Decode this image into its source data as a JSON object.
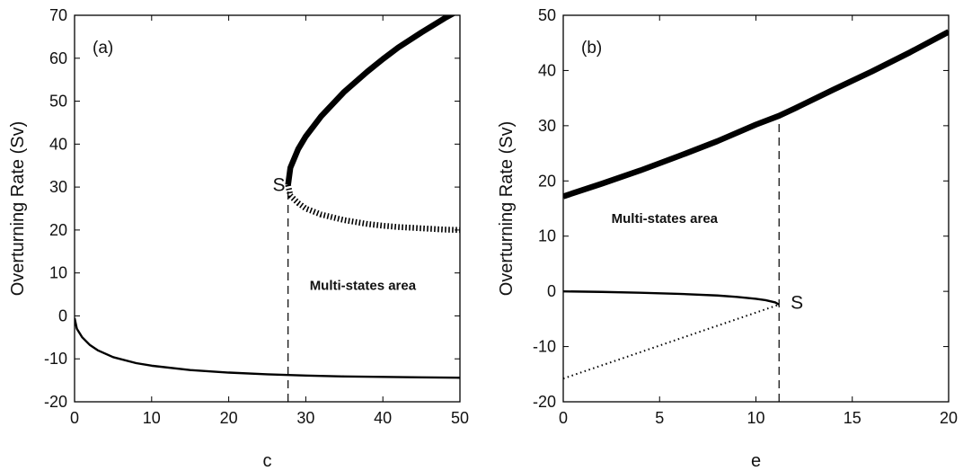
{
  "chart_data": [
    {
      "type": "line",
      "panel_label": "(a)",
      "xlabel": "c",
      "ylabel": "Overturning Rate (Sv)",
      "xlim": [
        0,
        50
      ],
      "ylim": [
        -20,
        70
      ],
      "xticks": [
        0,
        10,
        20,
        30,
        40,
        50
      ],
      "yticks": [
        -20,
        -10,
        0,
        10,
        20,
        30,
        40,
        50,
        60,
        70
      ],
      "grid": false,
      "series": [
        {
          "style": "thick-solid",
          "x": [
            27.7,
            28,
            29,
            30,
            32,
            35,
            38,
            40,
            42,
            45,
            48,
            50
          ],
          "y": [
            30.5,
            34.5,
            38.8,
            41.8,
            46.5,
            52.2,
            56.9,
            59.8,
            62.5,
            66.0,
            69.3,
            71.3
          ]
        },
        {
          "style": "thick-dotted",
          "x": [
            27.7,
            28,
            29,
            30,
            32,
            35,
            38,
            40,
            42,
            45,
            48,
            50
          ],
          "y": [
            30.5,
            28.0,
            26.3,
            25.0,
            23.6,
            22.3,
            21.4,
            21.0,
            20.7,
            20.4,
            20.1,
            20.0
          ]
        },
        {
          "style": "thin-solid",
          "x": [
            0,
            0.3,
            1,
            2,
            3,
            5,
            8,
            10,
            15,
            20,
            25,
            30,
            35,
            40,
            45,
            50
          ],
          "y": [
            -0.5,
            -3.0,
            -5.0,
            -6.8,
            -8.0,
            -9.6,
            -11.0,
            -11.6,
            -12.6,
            -13.2,
            -13.6,
            -13.9,
            -14.1,
            -14.2,
            -14.3,
            -14.4
          ]
        }
      ],
      "guide": {
        "x": 27.7,
        "y_from": -20,
        "y_to": 30.5
      },
      "annotations": [
        {
          "text": "S",
          "x": 25.7,
          "y": 30.5,
          "role": "point"
        },
        {
          "text": "Multi-states area",
          "x": 30.5,
          "y": 7.5,
          "role": "region"
        }
      ]
    },
    {
      "type": "line",
      "panel_label": "(b)",
      "xlabel": "e",
      "ylabel": "Overturning Rate (Sv)",
      "xlim": [
        0,
        20
      ],
      "ylim": [
        -20,
        50
      ],
      "xticks": [
        0,
        5,
        10,
        15,
        20
      ],
      "yticks": [
        -20,
        -10,
        0,
        10,
        20,
        30,
        40,
        50
      ],
      "grid": false,
      "series": [
        {
          "style": "thick-solid",
          "x": [
            0,
            2,
            4,
            6,
            8,
            10,
            11.2,
            12,
            14,
            16,
            18,
            20
          ],
          "y": [
            17.2,
            19.5,
            21.9,
            24.5,
            27.2,
            30.2,
            31.8,
            33.1,
            36.5,
            39.8,
            43.3,
            47.0
          ]
        },
        {
          "style": "thin-solid",
          "x": [
            0,
            2,
            4,
            6,
            8,
            9,
            10,
            10.5,
            11,
            11.2
          ],
          "y": [
            0,
            -0.1,
            -0.25,
            -0.45,
            -0.75,
            -1.0,
            -1.35,
            -1.6,
            -2.0,
            -2.4
          ]
        },
        {
          "style": "thin-dotted",
          "x": [
            0,
            11.2
          ],
          "y": [
            -15.8,
            -2.4
          ]
        }
      ],
      "guide": {
        "x": 11.2,
        "y_from": -20,
        "y_to": 31.8
      },
      "annotations": [
        {
          "text": "S",
          "x": 11.8,
          "y": -2.0,
          "role": "point"
        },
        {
          "text": "Multi-states area",
          "x": 2.5,
          "y": 13.5,
          "role": "region"
        }
      ]
    }
  ]
}
